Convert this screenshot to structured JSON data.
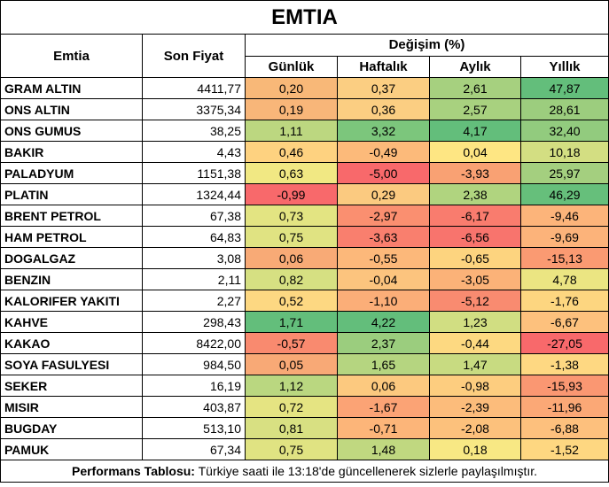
{
  "title": "EMTIA",
  "headers": {
    "emtia": "Emtia",
    "son_fiyat": "Son Fiyat",
    "degisim": "Değişim (%)",
    "gunluk": "Günlük",
    "haftalik": "Haftalık",
    "aylik": "Aylık",
    "yillik": "Yıllık"
  },
  "rows": [
    {
      "name": "GRAM ALTIN",
      "price": "4411,77",
      "d": "0,20",
      "w": "0,37",
      "m": "2,61",
      "y": "47,87",
      "cd": "#f8b878",
      "cw": "#fbce82",
      "cm": "#a6d07f",
      "cy": "#63be7b"
    },
    {
      "name": "ONS ALTIN",
      "price": "3375,34",
      "d": "0,19",
      "w": "0,36",
      "m": "2,57",
      "y": "28,61",
      "cd": "#f8b679",
      "cw": "#fbce82",
      "cm": "#a8d17f",
      "cy": "#9ccd7e"
    },
    {
      "name": "ONS GUMUS",
      "price": "38,25",
      "d": "1,11",
      "w": "3,32",
      "m": "4,17",
      "y": "32,40",
      "cd": "#bcd780",
      "cw": "#7cc67c",
      "cm": "#63be7b",
      "cy": "#92cb7e"
    },
    {
      "name": "BAKIR",
      "price": "4,43",
      "d": "0,46",
      "w": "-0,49",
      "m": "0,04",
      "y": "10,18",
      "cd": "#fed280",
      "cw": "#fcba7a",
      "cm": "#fee683",
      "cy": "#d3de82"
    },
    {
      "name": "PALADYUM",
      "price": "1151,38",
      "d": "0,63",
      "w": "-5,00",
      "m": "-3,93",
      "y": "25,97",
      "cd": "#f1e883",
      "cw": "#f8696b",
      "cm": "#f9a173",
      "cy": "#a4cf7f"
    },
    {
      "name": "PLATIN",
      "price": "1324,44",
      "d": "-0,99",
      "w": "0,29",
      "m": "2,38",
      "y": "46,29",
      "cd": "#f8696b",
      "cw": "#fbca80",
      "cm": "#b0d47f",
      "cy": "#66bf7b"
    },
    {
      "name": "BRENT PETROL",
      "price": "67,38",
      "d": "0,73",
      "w": "-2,97",
      "m": "-6,17",
      "y": "-9,46",
      "cd": "#e3e482",
      "cw": "#fa8f70",
      "cm": "#f97c6e",
      "cy": "#fcb47a"
    },
    {
      "name": "HAM PETROL",
      "price": "64,83",
      "d": "0,75",
      "w": "-3,63",
      "m": "-6,56",
      "y": "-9,69",
      "cd": "#e0e382",
      "cw": "#f97f6e",
      "cm": "#f8746d",
      "cy": "#fcb37a"
    },
    {
      "name": "DOGALGAZ",
      "price": "3,08",
      "d": "0,06",
      "w": "-0,55",
      "m": "-0,65",
      "y": "-15,13",
      "cd": "#f8aa76",
      "cw": "#fcb87a",
      "cm": "#fdd47f",
      "cy": "#fa9a72"
    },
    {
      "name": "BENZIN",
      "price": "2,11",
      "d": "0,82",
      "w": "-0,04",
      "m": "-3,05",
      "y": "4,78",
      "cd": "#d6e082",
      "cw": "#fcc47e",
      "cm": "#fbb278",
      "cy": "#ebe582"
    },
    {
      "name": "KALORIFER YAKITI",
      "price": "2,27",
      "d": "0,52",
      "w": "-1,10",
      "m": "-5,12",
      "y": "-1,76",
      "cd": "#fdd882",
      "cw": "#fbae78",
      "cm": "#f98b70",
      "cy": "#fdd680"
    },
    {
      "name": "KAHVE",
      "price": "298,43",
      "d": "1,71",
      "w": "4,22",
      "m": "1,23",
      "y": "-6,67",
      "cd": "#63be7b",
      "cw": "#63be7b",
      "cm": "#d1de82",
      "cy": "#fdc17d"
    },
    {
      "name": "KAKAO",
      "price": "8422,00",
      "d": "-0,57",
      "w": "2,37",
      "m": "-0,44",
      "y": "-27,05",
      "cd": "#f98a6f",
      "cw": "#9bcd7e",
      "cm": "#fdd981",
      "cy": "#f8696b"
    },
    {
      "name": "SOYA FASULYESI",
      "price": "984,50",
      "d": "0,05",
      "w": "1,65",
      "m": "1,47",
      "y": "-1,38",
      "cd": "#f8a976",
      "cw": "#b5d580",
      "cm": "#c8db81",
      "cy": "#fed882"
    },
    {
      "name": "SEKER",
      "price": "16,19",
      "d": "1,12",
      "w": "0,06",
      "m": "-0,98",
      "y": "-15,93",
      "cd": "#bad780",
      "cw": "#fcc97f",
      "cm": "#fdcd7f",
      "cy": "#fa9772"
    },
    {
      "name": "MISIR",
      "price": "403,87",
      "d": "0,72",
      "w": "-1,67",
      "m": "-2,39",
      "y": "-11,96",
      "cd": "#e5e482",
      "cw": "#fba375",
      "cm": "#fcbc7b",
      "cy": "#fba876"
    },
    {
      "name": "BUGDAY",
      "price": "513,10",
      "d": "0,81",
      "w": "-0,71",
      "m": "-2,08",
      "y": "-6,88",
      "cd": "#d8e082",
      "cw": "#fcb579",
      "cm": "#fcc17c",
      "cy": "#fdc07d"
    },
    {
      "name": "PAMUK",
      "price": "67,34",
      "d": "0,75",
      "w": "1,48",
      "m": "0,18",
      "y": "-1,52",
      "cd": "#e0e382",
      "cw": "#c0d880",
      "cm": "#f8e884",
      "cy": "#fed781"
    }
  ],
  "footer": {
    "bold": "Performans Tablosu:",
    "text": " Türkiye saati ile 13:18'de güncellenerek sizlerle paylaşılmıştır."
  }
}
